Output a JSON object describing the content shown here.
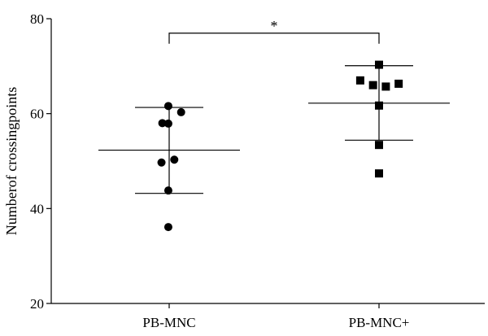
{
  "chart_data": {
    "type": "scatter",
    "ylabel": "Numberof crossingpoints",
    "xlabel": "",
    "ylim": [
      20,
      80
    ],
    "yticks": [
      20,
      40,
      60,
      80
    ],
    "categories": [
      "PB-MNC",
      "PB-MNC+"
    ],
    "series": [
      {
        "category": "PB-MNC",
        "marker": "circle",
        "points": [
          {
            "offset": -0.08,
            "y": 58.0
          },
          {
            "offset": -0.01,
            "y": 61.6
          },
          {
            "offset": 0.14,
            "y": 60.3
          },
          {
            "offset": -0.01,
            "y": 57.9
          },
          {
            "offset": -0.09,
            "y": 49.7
          },
          {
            "offset": 0.06,
            "y": 50.3
          },
          {
            "offset": -0.01,
            "y": 43.8
          },
          {
            "offset": -0.01,
            "y": 36.1
          }
        ],
        "mean": 52.3,
        "sd_upper": 61.3,
        "sd_lower": 43.2
      },
      {
        "category": "PB-MNC+",
        "marker": "square",
        "points": [
          {
            "offset": 0.0,
            "y": 70.3
          },
          {
            "offset": -0.22,
            "y": 67.0
          },
          {
            "offset": -0.07,
            "y": 66.0
          },
          {
            "offset": 0.08,
            "y": 65.7
          },
          {
            "offset": 0.23,
            "y": 66.3
          },
          {
            "offset": 0.0,
            "y": 61.7
          },
          {
            "offset": 0.0,
            "y": 53.4
          },
          {
            "offset": 0.0,
            "y": 47.4
          }
        ],
        "mean": 62.2,
        "sd_upper": 70.1,
        "sd_lower": 54.4
      }
    ],
    "significance": {
      "between": [
        "PB-MNC",
        "PB-MNC+"
      ],
      "y": 78.5,
      "label": "*"
    },
    "grid": false,
    "legend": "none"
  }
}
